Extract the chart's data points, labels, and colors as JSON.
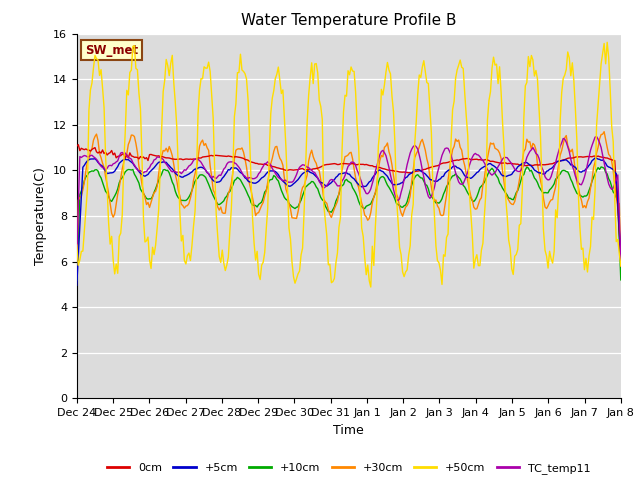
{
  "title": "Water Temperature Profile B",
  "xlabel": "Time",
  "ylabel": "Temperature(C)",
  "ylim": [
    0,
    16
  ],
  "yticks": [
    0,
    2,
    4,
    6,
    8,
    10,
    12,
    14,
    16
  ],
  "background_color": "#dcdcdc",
  "fig_background": "#ffffff",
  "annotation_text": "SW_met",
  "annotation_color": "#8b0000",
  "annotation_bg": "#ffffcc",
  "annotation_border": "#8b4513",
  "series": {
    "0cm": {
      "color": "#dd0000",
      "lw": 1.0
    },
    "+5cm": {
      "color": "#0000cc",
      "lw": 1.0
    },
    "+10cm": {
      "color": "#00aa00",
      "lw": 1.0
    },
    "+30cm": {
      "color": "#ff8800",
      "lw": 1.0
    },
    "+50cm": {
      "color": "#ffdd00",
      "lw": 1.0
    },
    "TC_temp11": {
      "color": "#aa00aa",
      "lw": 1.0
    }
  },
  "xtick_labels": [
    "Dec 24",
    "Dec 25",
    "Dec 26",
    "Dec 27",
    "Dec 28",
    "Dec 29",
    "Dec 30",
    "Dec 31",
    "Jan 1",
    "Jan 2",
    "Jan 3",
    "Jan 4",
    "Jan 5",
    "Jan 6",
    "Jan 7",
    "Jan 8"
  ],
  "days_total": 15,
  "hours_per_day": 24,
  "points_per_hour": 1
}
